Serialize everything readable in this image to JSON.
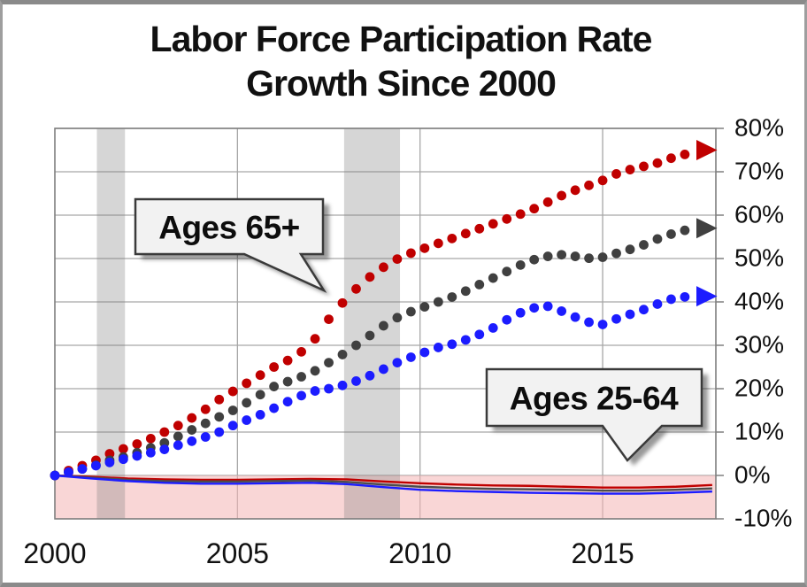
{
  "title": {
    "line1": "Labor Force Participation Rate",
    "line2": "Growth Since 2000"
  },
  "chart_data": {
    "type": "line",
    "title": "Labor Force Participation Rate Growth Since 2000",
    "x_axis": {
      "range": [
        2000,
        2018.1
      ],
      "tick_values": [
        2000,
        2005,
        2010,
        2015
      ],
      "tick_labels": [
        "2000",
        "2005",
        "2010",
        "2015"
      ],
      "gridline_years": [
        2005,
        2010,
        2015
      ],
      "grid": "on"
    },
    "y_axis": {
      "range": [
        -10,
        80
      ],
      "unit": "%",
      "tick_values": [
        80,
        70,
        60,
        50,
        40,
        30,
        20,
        10,
        0,
        -10
      ],
      "tick_labels": [
        "80%",
        "70%",
        "60%",
        "50%",
        "40%",
        "30%",
        "20%",
        "10%",
        "0%",
        "-10%"
      ],
      "labels_position": "right",
      "grid": "on"
    },
    "recession_bands": [
      {
        "from": 2001.15,
        "to": 2001.92
      },
      {
        "from": 2007.92,
        "to": 2009.45
      }
    ],
    "negative_region": {
      "from": 0,
      "to": -10,
      "color": "#f6bcbc"
    },
    "series": [
      {
        "name": "ages-65plus-series-red",
        "group": "Ages 65+",
        "style": "dotted",
        "color": "#c00000",
        "arrow_value": 75,
        "x": [
          2000,
          2000.5,
          2001,
          2001.5,
          2002,
          2002.5,
          2003,
          2003.5,
          2004,
          2004.5,
          2005,
          2005.5,
          2006,
          2006.5,
          2007,
          2007.5,
          2008,
          2008.5,
          2009,
          2009.5,
          2010,
          2010.5,
          2011,
          2011.5,
          2012,
          2012.5,
          2013,
          2013.5,
          2014,
          2014.5,
          2015,
          2015.5,
          2016,
          2016.5,
          2017,
          2017.5
        ],
        "y": [
          0,
          1.5,
          3,
          5,
          6.5,
          8,
          10,
          12,
          14.5,
          17.5,
          20,
          22.5,
          25,
          27,
          30,
          36,
          41,
          45,
          48,
          50.5,
          52,
          53.5,
          55,
          56.5,
          58,
          59.5,
          61,
          63,
          65,
          66.5,
          68,
          70,
          71,
          72,
          73.5,
          74.5
        ]
      },
      {
        "name": "ages-65plus-series-gray",
        "group": "Ages 65+",
        "style": "dotted",
        "color": "#404040",
        "arrow_value": 57,
        "x": [
          2000,
          2000.5,
          2001,
          2001.5,
          2002,
          2002.5,
          2003,
          2003.5,
          2004,
          2004.5,
          2005,
          2005.5,
          2006,
          2006.5,
          2007,
          2007.5,
          2008,
          2008.5,
          2009,
          2009.5,
          2010,
          2010.5,
          2011,
          2011.5,
          2012,
          2012.5,
          2013,
          2013.5,
          2014,
          2014.5,
          2015,
          2015.5,
          2016,
          2016.5,
          2017,
          2017.5
        ],
        "y": [
          0,
          1,
          2,
          3.5,
          4.5,
          6,
          7.5,
          9.5,
          11.5,
          13.5,
          15.5,
          18,
          20.5,
          22,
          23.5,
          26,
          28.5,
          31.5,
          34.5,
          37,
          38.5,
          40,
          41.5,
          43.5,
          45.5,
          47.5,
          49.5,
          50.5,
          51,
          50,
          50.3,
          51.5,
          52.7,
          54.5,
          56,
          57
        ]
      },
      {
        "name": "ages-65plus-series-blue",
        "group": "Ages 65+",
        "style": "dotted",
        "color": "#1c1cff",
        "arrow_value": 41.3,
        "x": [
          2000,
          2000.5,
          2001,
          2001.5,
          2002,
          2002.5,
          2003,
          2003.5,
          2004,
          2004.5,
          2005,
          2005.5,
          2006,
          2006.5,
          2007,
          2007.5,
          2008,
          2008.5,
          2009,
          2009.5,
          2010,
          2010.5,
          2011,
          2011.5,
          2012,
          2012.5,
          2013,
          2013.5,
          2014,
          2014.5,
          2015,
          2015.5,
          2016,
          2016.5,
          2017,
          2017.5
        ],
        "y": [
          0,
          1,
          2,
          3,
          4,
          5,
          6,
          7.3,
          8.5,
          10,
          12,
          13.5,
          15.5,
          17.5,
          19.3,
          20,
          21,
          22.5,
          24.5,
          26.5,
          28,
          29.5,
          30.5,
          32,
          34,
          36.5,
          38.5,
          39,
          37.5,
          35.5,
          34.8,
          36.5,
          37.8,
          39.5,
          41,
          41.3
        ]
      },
      {
        "name": "ages-25-64-series-red",
        "group": "Ages 25-64",
        "style": "solid",
        "color": "#c00000",
        "x": [
          2000,
          2001,
          2002,
          2003,
          2004,
          2005,
          2006,
          2007,
          2008,
          2009,
          2010,
          2011,
          2012,
          2013,
          2014,
          2015,
          2016,
          2017,
          2018
        ],
        "y": [
          0,
          -0.3,
          -0.7,
          -0.9,
          -1.0,
          -1.0,
          -0.9,
          -0.8,
          -0.9,
          -1.4,
          -1.8,
          -2.1,
          -2.3,
          -2.4,
          -2.6,
          -2.8,
          -2.8,
          -2.6,
          -2.2
        ]
      },
      {
        "name": "ages-25-64-series-gray",
        "group": "Ages 25-64",
        "style": "solid",
        "color": "#4d4d4d",
        "x": [
          2000,
          2001,
          2002,
          2003,
          2004,
          2005,
          2006,
          2007,
          2008,
          2009,
          2010,
          2011,
          2012,
          2013,
          2014,
          2015,
          2016,
          2017,
          2018
        ],
        "y": [
          0,
          -0.5,
          -1.0,
          -1.3,
          -1.4,
          -1.4,
          -1.3,
          -1.2,
          -1.5,
          -2.1,
          -2.6,
          -2.9,
          -3.1,
          -3.2,
          -3.3,
          -3.5,
          -3.5,
          -3.3,
          -3.0
        ]
      },
      {
        "name": "ages-25-64-series-blue",
        "group": "Ages 25-64",
        "style": "solid",
        "color": "#1c1cff",
        "x": [
          2000,
          2001,
          2002,
          2003,
          2004,
          2005,
          2006,
          2007,
          2008,
          2009,
          2010,
          2011,
          2012,
          2013,
          2014,
          2015,
          2016,
          2017,
          2018
        ],
        "y": [
          0,
          -0.7,
          -1.3,
          -1.7,
          -1.9,
          -1.9,
          -1.8,
          -1.7,
          -2.0,
          -2.7,
          -3.3,
          -3.6,
          -3.8,
          -4.0,
          -4.1,
          -4.2,
          -4.2,
          -4.0,
          -3.7
        ]
      }
    ],
    "callouts": [
      {
        "text": "Ages 65+"
      },
      {
        "text": "Ages 25-64"
      }
    ],
    "legend_position": "none"
  },
  "colors": {
    "red": "#c00000",
    "gray": "#404040",
    "blue": "#1c1cff",
    "gridline": "#a6a6a6",
    "plot_border": "#7f7f7f",
    "recession_band": "rgba(128,128,128,0.32)",
    "negative_region_fill": "rgba(244,180,180,0.55)",
    "callout_fill": "#f2f2f2",
    "callout_stroke": "#3a3a3a"
  }
}
